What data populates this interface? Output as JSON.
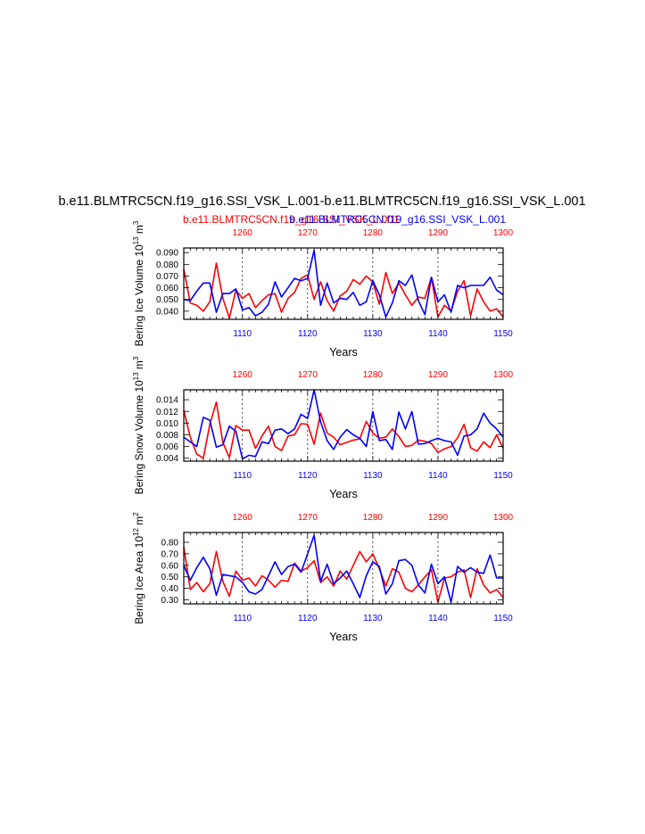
{
  "header": {
    "title": "b.e11.BLMTRC5CN.f19_g16.SSI_VSK_L.001-b.e11.BLMTRC5CN.f19_g16.SSI_VSK_L.001",
    "subtitle_red": "b.e11.BLMTRC5CN.f19_g16.SSI_VSK_L.001",
    "subtitle_blue": "b.e11.BLMTRC5CN.f19_g16.SSI_VSK_L.001"
  },
  "colors": {
    "series_red": "#ff0000",
    "series_blue": "#0000ff",
    "axis": "#000000"
  },
  "chart_data": [
    {
      "type": "line",
      "ylabel": "Bering Ice Volume 10",
      "ylabel_exp": "13",
      "ylabel_unit": " m",
      "ylabel_unit_exp": "3",
      "xlabel": "Years",
      "xlim_bottom": [
        1101,
        1150
      ],
      "xlim_top": [
        1251,
        1300
      ],
      "ylim": [
        0.033,
        0.094
      ],
      "yticks": [
        0.04,
        0.05,
        0.06,
        0.07,
        0.08,
        0.09
      ],
      "ytick_labels": [
        "0.040",
        "0.050",
        "0.060",
        "0.070",
        "0.080",
        "0.090"
      ],
      "xticks_bottom": [
        1110,
        1120,
        1130,
        1140,
        1150
      ],
      "xticks_top": [
        1260,
        1270,
        1280,
        1290,
        1300
      ],
      "series": [
        {
          "color": "red",
          "axis": "top",
          "x_start": 1251,
          "values": [
            0.076,
            0.047,
            0.045,
            0.04,
            0.048,
            0.081,
            0.051,
            0.034,
            0.058,
            0.051,
            0.055,
            0.043,
            0.049,
            0.054,
            0.055,
            0.039,
            0.051,
            0.056,
            0.068,
            0.071,
            0.05,
            0.065,
            0.049,
            0.04,
            0.053,
            0.057,
            0.067,
            0.063,
            0.07,
            0.065,
            0.046,
            0.073,
            0.055,
            0.064,
            0.054,
            0.045,
            0.052,
            0.051,
            0.069,
            0.035,
            0.045,
            0.04,
            0.057,
            0.066,
            0.036,
            0.059,
            0.048,
            0.04,
            0.042,
            0.035
          ]
        },
        {
          "color": "blue",
          "axis": "bottom",
          "x_start": 1101,
          "values": [
            0.05,
            0.049,
            0.057,
            0.064,
            0.064,
            0.039,
            0.055,
            0.055,
            0.059,
            0.041,
            0.043,
            0.036,
            0.039,
            0.046,
            0.065,
            0.052,
            0.06,
            0.068,
            0.066,
            0.068,
            0.092,
            0.045,
            0.064,
            0.047,
            0.051,
            0.05,
            0.056,
            0.045,
            0.048,
            0.066,
            0.054,
            0.035,
            0.047,
            0.066,
            0.062,
            0.071,
            0.049,
            0.037,
            0.069,
            0.048,
            0.054,
            0.039,
            0.062,
            0.06,
            0.062,
            0.062,
            0.062,
            0.069,
            0.058,
            0.054
          ]
        }
      ]
    },
    {
      "type": "line",
      "ylabel": "Bering Snow Volume 10",
      "ylabel_exp": "13",
      "ylabel_unit": " m",
      "ylabel_unit_exp": "3",
      "xlabel": "Years",
      "xlim_bottom": [
        1101,
        1150
      ],
      "xlim_top": [
        1251,
        1300
      ],
      "ylim": [
        0.0035,
        0.0157
      ],
      "yticks": [
        0.004,
        0.006,
        0.008,
        0.01,
        0.012,
        0.014
      ],
      "ytick_labels": [
        "0.004",
        "0.006",
        "0.008",
        "0.010",
        "0.012",
        "0.014"
      ],
      "xticks_bottom": [
        1110,
        1120,
        1130,
        1140,
        1150
      ],
      "xticks_top": [
        1260,
        1270,
        1280,
        1290,
        1300
      ],
      "series": [
        {
          "color": "red",
          "axis": "top",
          "x_start": 1251,
          "values": [
            0.0122,
            0.0076,
            0.0047,
            0.004,
            0.0098,
            0.0136,
            0.0067,
            0.0041,
            0.0096,
            0.0088,
            0.0088,
            0.0057,
            0.0078,
            0.0095,
            0.006,
            0.0053,
            0.0078,
            0.008,
            0.0099,
            0.0098,
            0.0064,
            0.0117,
            0.0083,
            0.0076,
            0.0063,
            0.0067,
            0.0071,
            0.0073,
            0.0103,
            0.0083,
            0.0074,
            0.0076,
            0.009,
            0.0077,
            0.006,
            0.0062,
            0.0071,
            0.0069,
            0.0065,
            0.005,
            0.0056,
            0.006,
            0.0075,
            0.0098,
            0.0058,
            0.0052,
            0.0068,
            0.0058,
            0.008,
            0.0057
          ]
        },
        {
          "color": "blue",
          "axis": "bottom",
          "x_start": 1101,
          "values": [
            0.0076,
            0.0068,
            0.006,
            0.011,
            0.0105,
            0.0059,
            0.0063,
            0.0095,
            0.0086,
            0.0039,
            0.0045,
            0.0043,
            0.0068,
            0.0065,
            0.0088,
            0.009,
            0.0082,
            0.009,
            0.0115,
            0.0108,
            0.0157,
            0.0102,
            0.007,
            0.0055,
            0.0076,
            0.0089,
            0.008,
            0.0074,
            0.006,
            0.012,
            0.007,
            0.0072,
            0.0055,
            0.0119,
            0.009,
            0.012,
            0.0064,
            0.0065,
            0.007,
            0.0074,
            0.007,
            0.0068,
            0.0045,
            0.0078,
            0.008,
            0.009,
            0.0117,
            0.01,
            0.009,
            0.0076
          ]
        }
      ]
    },
    {
      "type": "line",
      "ylabel": "Bering Ice Area 10",
      "ylabel_exp": "12",
      "ylabel_unit": " m",
      "ylabel_unit_exp": "2",
      "xlabel": "Years",
      "xlim_bottom": [
        1101,
        1150
      ],
      "xlim_top": [
        1251,
        1300
      ],
      "ylim": [
        0.265,
        0.885
      ],
      "yticks": [
        0.3,
        0.4,
        0.5,
        0.6,
        0.7,
        0.8
      ],
      "ytick_labels": [
        "0.30",
        "0.40",
        "0.50",
        "0.60",
        "0.70",
        "0.80"
      ],
      "xticks_bottom": [
        1110,
        1120,
        1130,
        1140,
        1150
      ],
      "xticks_top": [
        1260,
        1270,
        1280,
        1290,
        1300
      ],
      "series": [
        {
          "color": "red",
          "axis": "top",
          "x_start": 1251,
          "values": [
            0.76,
            0.39,
            0.45,
            0.37,
            0.44,
            0.72,
            0.46,
            0.33,
            0.55,
            0.47,
            0.49,
            0.42,
            0.51,
            0.47,
            0.41,
            0.47,
            0.46,
            0.62,
            0.55,
            0.58,
            0.64,
            0.45,
            0.5,
            0.42,
            0.55,
            0.48,
            0.6,
            0.72,
            0.63,
            0.7,
            0.57,
            0.42,
            0.57,
            0.54,
            0.4,
            0.37,
            0.43,
            0.5,
            0.56,
            0.28,
            0.49,
            0.5,
            0.54,
            0.56,
            0.32,
            0.57,
            0.43,
            0.36,
            0.39,
            0.32
          ]
        },
        {
          "color": "blue",
          "axis": "bottom",
          "x_start": 1101,
          "values": [
            0.6,
            0.47,
            0.58,
            0.67,
            0.57,
            0.34,
            0.52,
            0.51,
            0.5,
            0.45,
            0.37,
            0.35,
            0.39,
            0.51,
            0.63,
            0.52,
            0.59,
            0.61,
            0.54,
            0.7,
            0.86,
            0.46,
            0.61,
            0.44,
            0.49,
            0.55,
            0.44,
            0.32,
            0.51,
            0.63,
            0.59,
            0.35,
            0.44,
            0.64,
            0.65,
            0.6,
            0.43,
            0.36,
            0.61,
            0.44,
            0.5,
            0.28,
            0.59,
            0.54,
            0.58,
            0.54,
            0.53,
            0.69,
            0.49,
            0.49
          ]
        }
      ]
    }
  ]
}
